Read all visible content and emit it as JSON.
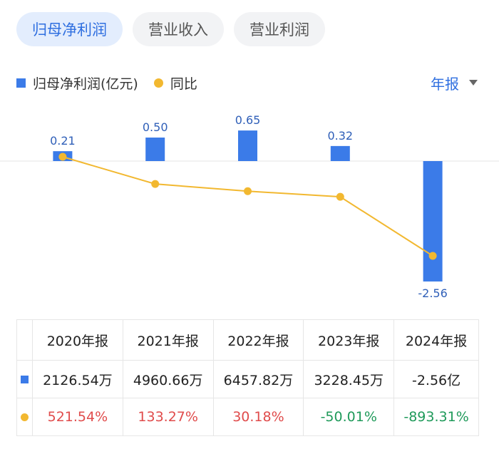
{
  "tabs": [
    "归母净利润",
    "营业收入",
    "营业利润"
  ],
  "legend": {
    "bar_label": "归母净利润(亿元)",
    "line_label": "同比"
  },
  "period_selector": "年报",
  "colors": {
    "bar": "#3b7be8",
    "line": "#f2b830",
    "positive": "#e04b4b",
    "negative": "#1f9a5a",
    "accent": "#2f6fe0"
  },
  "chart_data": {
    "type": "bar",
    "categories": [
      "2020年报",
      "2021年报",
      "2022年报",
      "2023年报",
      "2024年报"
    ],
    "series": [
      {
        "name": "归母净利润(亿元)",
        "type": "bar",
        "values": [
          0.21,
          0.5,
          0.65,
          0.32,
          -2.56
        ],
        "labels": [
          "0.21",
          "0.50",
          "0.65",
          "0.32",
          "-2.56"
        ]
      },
      {
        "name": "同比",
        "type": "line",
        "values": [
          521.54,
          133.27,
          30.18,
          -50.01,
          -893.31
        ]
      }
    ],
    "ylim": [
      -2.56,
      0.65
    ],
    "grid": false
  },
  "table": {
    "headers": [
      "2020年报",
      "2021年报",
      "2022年报",
      "2023年报",
      "2024年报"
    ],
    "amounts": [
      "2126.54万",
      "4960.66万",
      "6457.82万",
      "3228.45万",
      "-2.56亿"
    ],
    "yoy": [
      "521.54%",
      "133.27%",
      "30.18%",
      "-50.01%",
      "-893.31%"
    ]
  }
}
